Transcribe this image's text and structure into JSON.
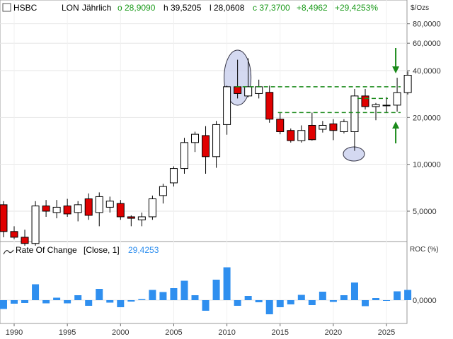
{
  "header": {
    "symbol": "HSBC",
    "exchange": "LON",
    "period": "Jährlich",
    "open": "o 28,9090",
    "high": "h 39,5205",
    "low": "l 28,0608",
    "close": "c 37,3700",
    "change": "+8,4962",
    "change_pct": "+29,4253%"
  },
  "price_unit": "$/Ozs",
  "roc_panel": {
    "title": "Rate Of Change",
    "params": "[Close, 1]",
    "value": "29,4253",
    "unit": "ROC (%)"
  },
  "colors": {
    "up_body": "#ffffff",
    "down_body": "#e00000",
    "outline": "#000000",
    "roc_bar": "#2f8fef",
    "guide": "#1a8a1a",
    "highlight": "#c9d0ee"
  },
  "chart_data": [
    {
      "type": "candlestick",
      "scale": "log",
      "ylim": [
        2800,
        100000
      ],
      "x_ticks": [
        "1990",
        "1995",
        "2000",
        "2005",
        "2010",
        "2015",
        "2020",
        "2025"
      ],
      "y_ticks": [
        "5,0000",
        "10,0000",
        "20,0000",
        "40,0000",
        "60,0000",
        "80,0000"
      ],
      "y_tick_values": [
        5000,
        10000,
        20000,
        40000,
        60000,
        80000
      ],
      "series": [
        {
          "x": 1989,
          "o": 5500,
          "h": 5800,
          "l": 3400,
          "c": 3700
        },
        {
          "x": 1990,
          "o": 3700,
          "h": 4000,
          "l": 3300,
          "c": 3400
        },
        {
          "x": 1991,
          "o": 3400,
          "h": 3800,
          "l": 3000,
          "c": 3100
        },
        {
          "x": 1992,
          "o": 3100,
          "h": 5800,
          "l": 3000,
          "c": 5400
        },
        {
          "x": 1993,
          "o": 5400,
          "h": 5900,
          "l": 4600,
          "c": 5000
        },
        {
          "x": 1994,
          "o": 4900,
          "h": 5900,
          "l": 4500,
          "c": 5300
        },
        {
          "x": 1995,
          "o": 5400,
          "h": 6000,
          "l": 4600,
          "c": 4800
        },
        {
          "x": 1996,
          "o": 4900,
          "h": 5800,
          "l": 4300,
          "c": 5500
        },
        {
          "x": 1997,
          "o": 6000,
          "h": 6500,
          "l": 4400,
          "c": 4700
        },
        {
          "x": 1998,
          "o": 4900,
          "h": 6600,
          "l": 4000,
          "c": 6200
        },
        {
          "x": 1999,
          "o": 5300,
          "h": 6200,
          "l": 4900,
          "c": 5800
        },
        {
          "x": 2000,
          "o": 5600,
          "h": 5900,
          "l": 4400,
          "c": 4600
        },
        {
          "x": 2001,
          "o": 4600,
          "h": 4700,
          "l": 4000,
          "c": 4500
        },
        {
          "x": 2002,
          "o": 4400,
          "h": 4900,
          "l": 4000,
          "c": 4600
        },
        {
          "x": 2003,
          "o": 4600,
          "h": 6300,
          "l": 4400,
          "c": 6000
        },
        {
          "x": 2004,
          "o": 6300,
          "h": 7500,
          "l": 5600,
          "c": 7200
        },
        {
          "x": 2005,
          "o": 7600,
          "h": 9700,
          "l": 7200,
          "c": 9400
        },
        {
          "x": 2006,
          "o": 9400,
          "h": 14800,
          "l": 8700,
          "c": 13800
        },
        {
          "x": 2007,
          "o": 13800,
          "h": 16200,
          "l": 12000,
          "c": 15600
        },
        {
          "x": 2008,
          "o": 15300,
          "h": 17600,
          "l": 8700,
          "c": 11200
        },
        {
          "x": 2009,
          "o": 11200,
          "h": 19000,
          "l": 9500,
          "c": 18000
        },
        {
          "x": 2010,
          "o": 18000,
          "h": 32000,
          "l": 15500,
          "c": 31500
        },
        {
          "x": 2011,
          "o": 31500,
          "h": 47000,
          "l": 26500,
          "c": 28500
        },
        {
          "x": 2012,
          "o": 27500,
          "h": 48000,
          "l": 27000,
          "c": 31500
        },
        {
          "x": 2013,
          "o": 28500,
          "h": 35000,
          "l": 26500,
          "c": 31500
        },
        {
          "x": 2014,
          "o": 29000,
          "h": 32000,
          "l": 18500,
          "c": 19500
        },
        {
          "x": 2015,
          "o": 19500,
          "h": 21500,
          "l": 15600,
          "c": 16200
        },
        {
          "x": 2016,
          "o": 16500,
          "h": 17000,
          "l": 13800,
          "c": 14200
        },
        {
          "x": 2017,
          "o": 14200,
          "h": 17800,
          "l": 13800,
          "c": 16500
        },
        {
          "x": 2018,
          "o": 17800,
          "h": 21500,
          "l": 14200,
          "c": 14400
        },
        {
          "x": 2019,
          "o": 16800,
          "h": 19000,
          "l": 16000,
          "c": 17800
        },
        {
          "x": 2020,
          "o": 18200,
          "h": 19500,
          "l": 14300,
          "c": 16500
        },
        {
          "x": 2021,
          "o": 16200,
          "h": 19500,
          "l": 15800,
          "c": 18800
        },
        {
          "x": 2022,
          "o": 16200,
          "h": 30500,
          "l": 12200,
          "c": 27500
        },
        {
          "x": 2023,
          "o": 27500,
          "h": 30500,
          "l": 22500,
          "c": 23500
        },
        {
          "x": 2024,
          "o": 23500,
          "h": 24800,
          "l": 19200,
          "c": 24200
        },
        {
          "x": 2025,
          "o": 23800,
          "h": 27000,
          "l": 21500,
          "c": 24000
        },
        {
          "x": 2026,
          "o": 24000,
          "h": 36000,
          "l": 21800,
          "c": 28900
        },
        {
          "x": 2027,
          "o": 28900,
          "h": 39500,
          "l": 28100,
          "c": 37370
        }
      ],
      "annotations": {
        "support_lines": [
          31500,
          21500
        ],
        "mid_line": 26500,
        "ellipses": [
          "2011",
          "2022"
        ],
        "arrows": [
          "down at 2026",
          "up at 2026"
        ]
      }
    },
    {
      "type": "bar",
      "name": "Rate Of Change",
      "ylim": [
        -40,
        120
      ],
      "y_ticks": [
        "0,0000"
      ],
      "x": [
        1989,
        1990,
        1991,
        1992,
        1993,
        1994,
        1995,
        1996,
        1997,
        1998,
        1999,
        2000,
        2001,
        2002,
        2003,
        2004,
        2005,
        2006,
        2007,
        2008,
        2009,
        2010,
        2011,
        2012,
        2013,
        2014,
        2015,
        2016,
        2017,
        2018,
        2019,
        2020,
        2021,
        2022,
        2023,
        2024,
        2025,
        2026,
        2027
      ],
      "values": [
        -25,
        -10,
        -8,
        45,
        -9,
        7,
        -9,
        14,
        -16,
        32,
        -7,
        -20,
        -4,
        3,
        29,
        23,
        34,
        55,
        14,
        -30,
        58,
        93,
        -16,
        12,
        -6,
        -40,
        -20,
        -12,
        15,
        -14,
        24,
        -5,
        14,
        50,
        -17,
        6,
        -1,
        25,
        29
      ]
    }
  ]
}
